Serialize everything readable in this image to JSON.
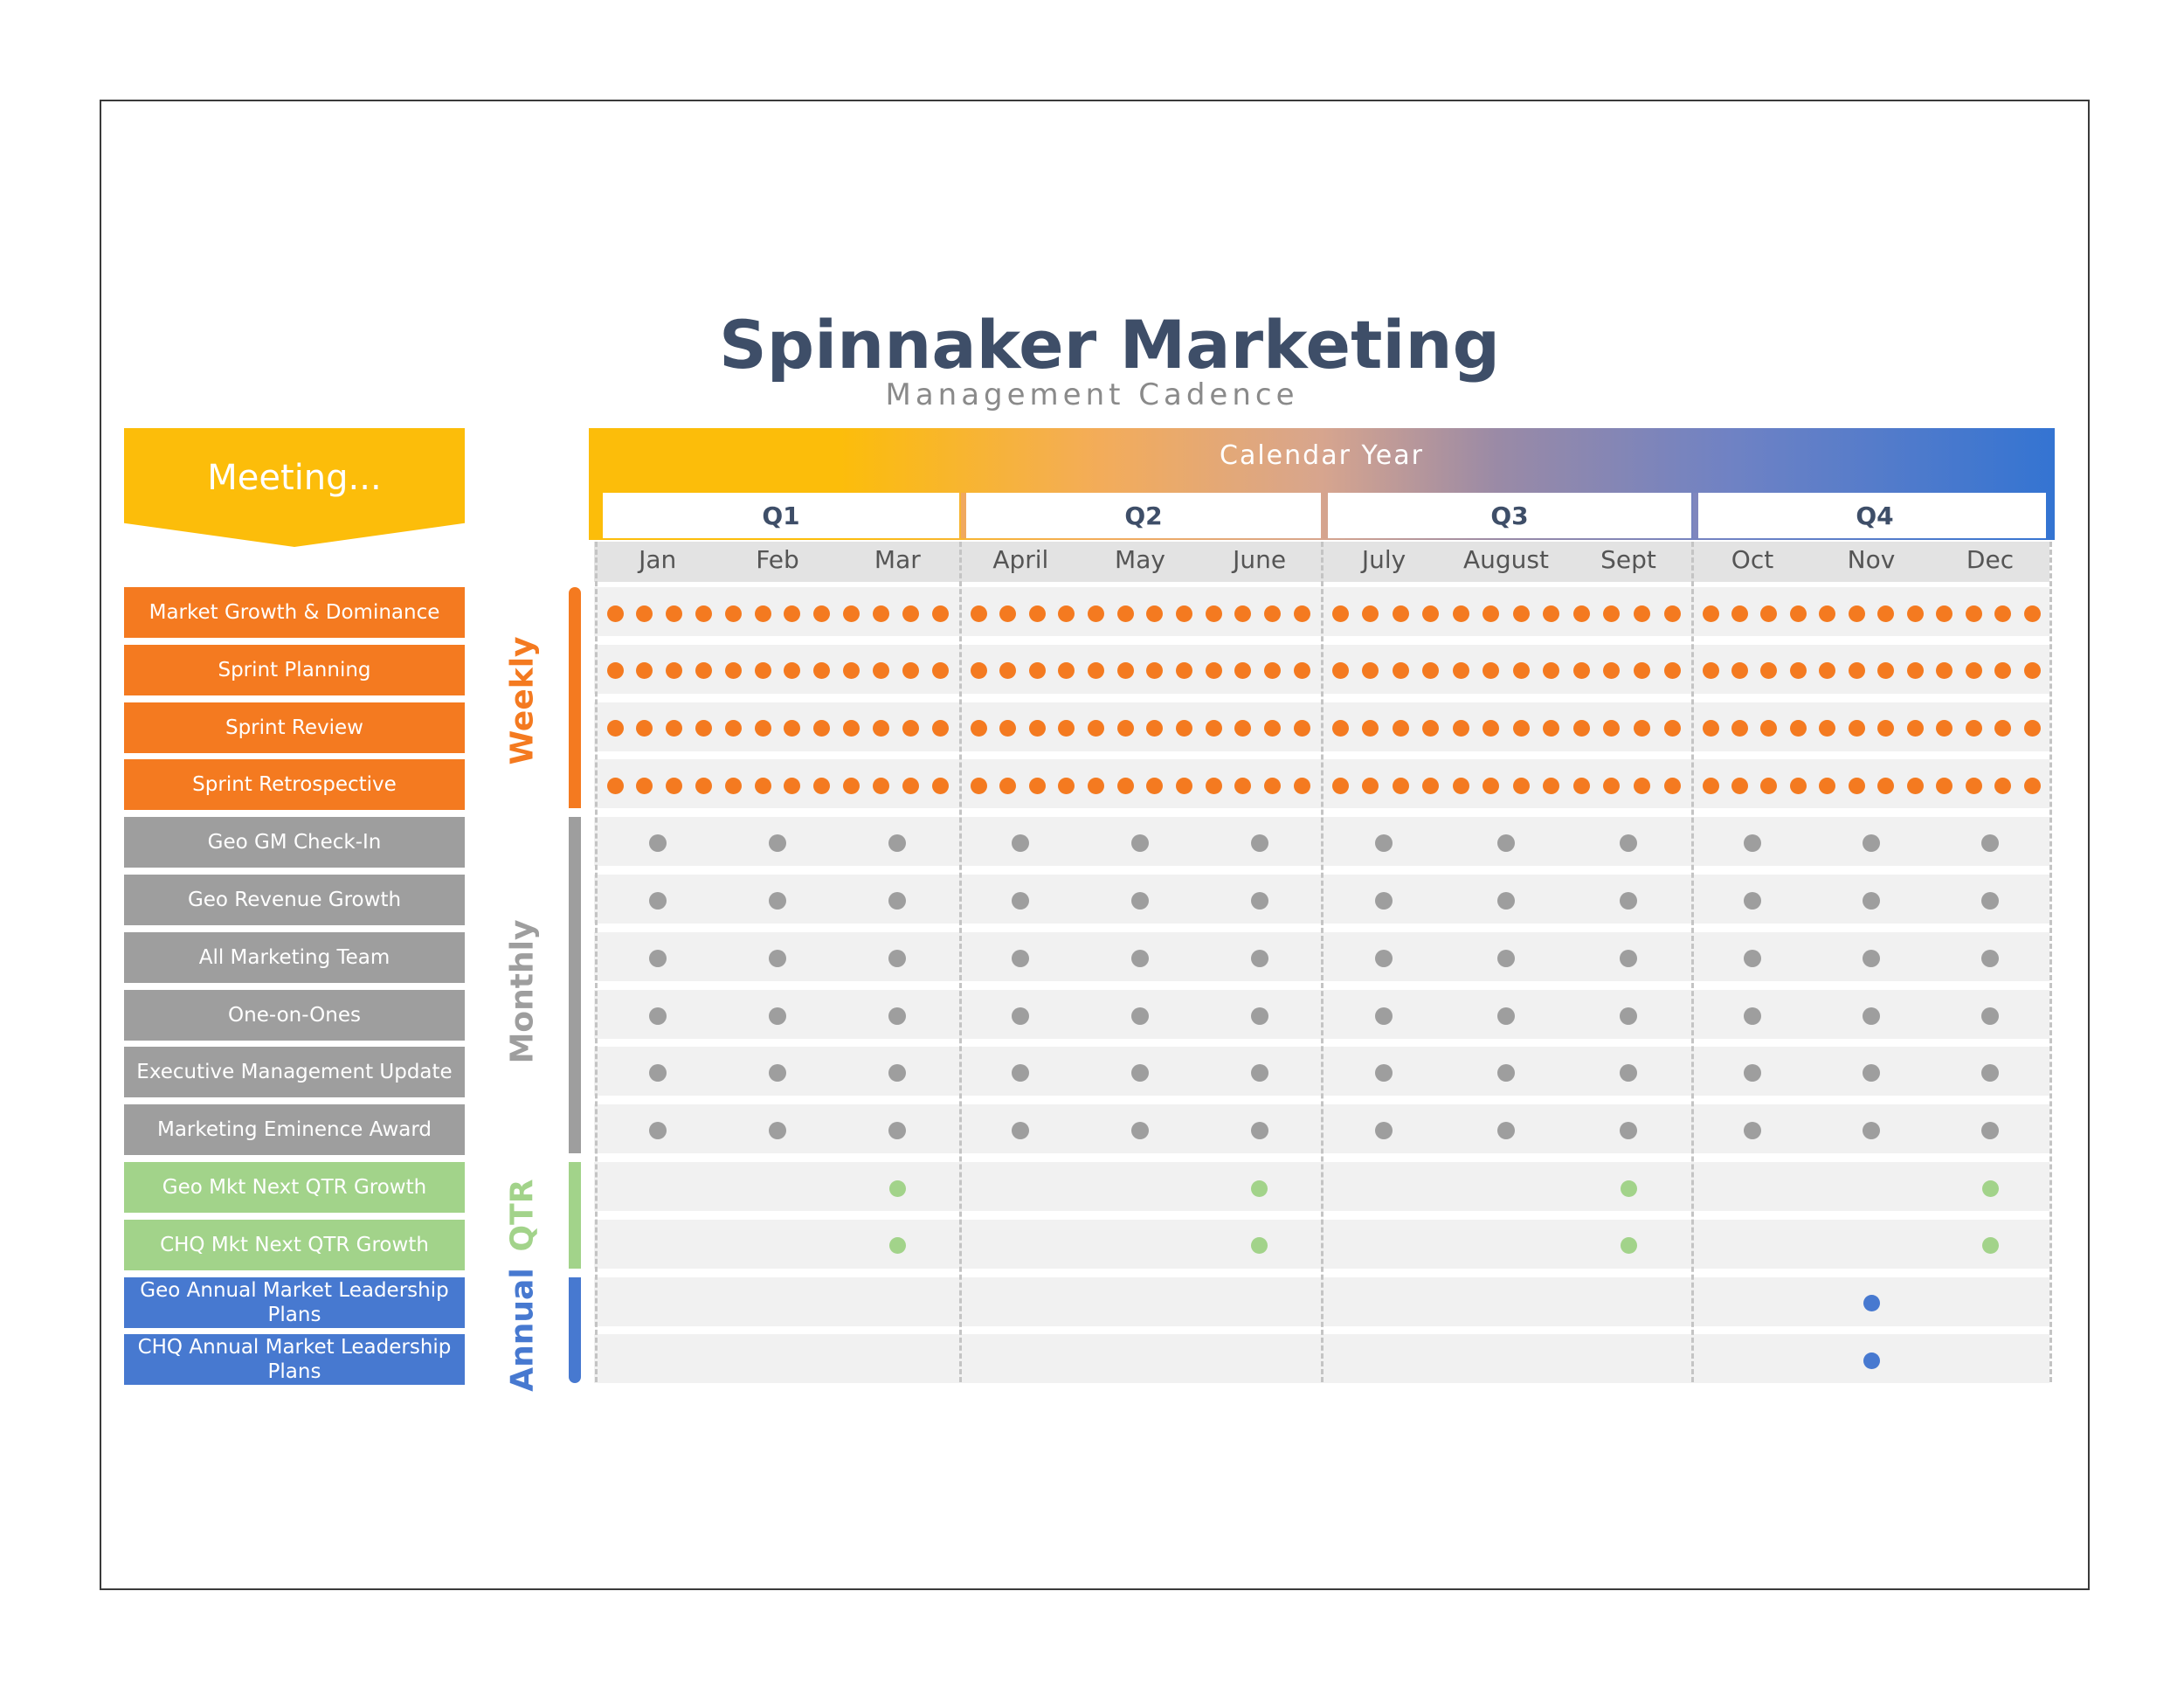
{
  "title": "Spinnaker Marketing",
  "subtitle": "Management Cadence",
  "meeting_header": "Meeting...",
  "calendar_header": "Calendar Year",
  "colors": {
    "weekly": "#f47a20",
    "monthly": "#9e9e9e",
    "qtr": "#a2d38a",
    "annual": "#4779d0",
    "title": "#3e4e68",
    "header_yellow": "#fcbd0a"
  },
  "quarters": [
    "Q1",
    "Q2",
    "Q3",
    "Q4"
  ],
  "months": [
    "Jan",
    "Feb",
    "Mar",
    "April",
    "May",
    "June",
    "July",
    "August",
    "Sept",
    "Oct",
    "Nov",
    "Dec"
  ],
  "frequencies": [
    {
      "label": "Weekly",
      "key": "weekly"
    },
    {
      "label": "Monthly",
      "key": "monthly"
    },
    {
      "label": "QTR",
      "key": "qtr"
    },
    {
      "label": "Annual",
      "key": "annual"
    }
  ],
  "meetings": [
    {
      "label": "Market Growth & Dominance",
      "cadence": "weekly"
    },
    {
      "label": "Sprint Planning",
      "cadence": "weekly"
    },
    {
      "label": "Sprint Review",
      "cadence": "weekly"
    },
    {
      "label": "Sprint Retrospective",
      "cadence": "weekly"
    },
    {
      "label": "Geo GM Check-In",
      "cadence": "monthly"
    },
    {
      "label": "Geo Revenue Growth",
      "cadence": "monthly"
    },
    {
      "label": "All Marketing Team",
      "cadence": "monthly"
    },
    {
      "label": "One-on-Ones",
      "cadence": "monthly"
    },
    {
      "label": "Executive Management Update",
      "cadence": "monthly"
    },
    {
      "label": "Marketing Eminence Award",
      "cadence": "monthly"
    },
    {
      "label": "Geo Mkt Next QTR Growth",
      "cadence": "qtr"
    },
    {
      "label": "CHQ Mkt Next QTR Growth",
      "cadence": "qtr"
    },
    {
      "label": "Geo Annual Market Leadership Plans",
      "cadence": "annual"
    },
    {
      "label": "CHQ Annual Market Leadership Plans",
      "cadence": "annual"
    }
  ],
  "schedule": {
    "weekly_dots_per_quarter": 12,
    "monthly_months": [
      1,
      2,
      3,
      4,
      5,
      6,
      7,
      8,
      9,
      10,
      11,
      12
    ],
    "qtr_months": [
      3,
      6,
      9,
      12
    ],
    "annual_months": [
      11
    ]
  }
}
